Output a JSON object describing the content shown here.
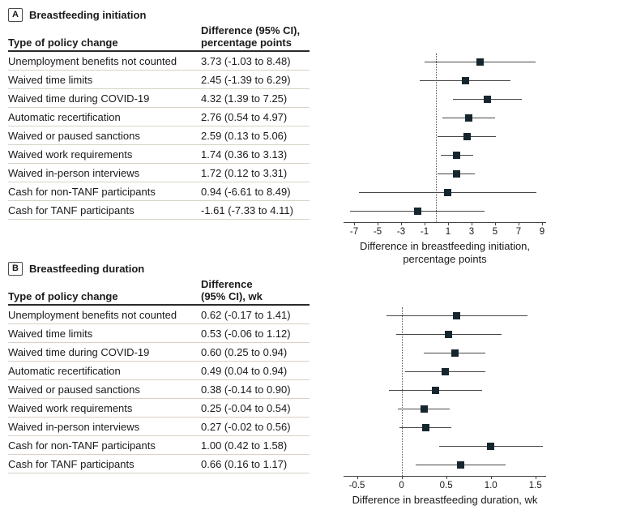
{
  "colors": {
    "marker": "#16262e",
    "ci_line": "#474747",
    "axis": "#444444",
    "refline": "#555555",
    "rule_light": "#d8d2c6",
    "rule_dark": "#2a2a2a",
    "text": "#1a1a1a"
  },
  "chart_data": [
    {
      "type": "forest",
      "panel_label": "A",
      "title": "Breastfeeding initiation",
      "col1_header": "Type of policy change",
      "col2_header_line1": "Difference (95% CI),",
      "col2_header_line2": "percentage points",
      "categories": [
        "Unemployment benefits not counted",
        "Waived time limits",
        "Waived time during COVID-19",
        "Automatic recertification",
        "Waived or paused sanctions",
        "Waived work requirements",
        "Waived in-person interviews",
        "Cash for non-TANF participants",
        "Cash for TANF participants"
      ],
      "ci_text": [
        "3.73 (-1.03 to 8.48)",
        "2.45 (-1.39 to 6.29)",
        "4.32 (1.39 to 7.25)",
        "2.76 (0.54 to 4.97)",
        "2.59 (0.13 to 5.06)",
        "1.74 (0.36 to 3.13)",
        "1.72 (0.12 to 3.31)",
        "0.94 (-6.61 to 8.49)",
        "-1.61 (-7.33 to 4.11)"
      ],
      "estimates": [
        3.73,
        2.45,
        4.32,
        2.76,
        2.59,
        1.74,
        1.72,
        0.94,
        -1.61
      ],
      "ci_low": [
        -1.03,
        -1.39,
        1.39,
        0.54,
        0.13,
        0.36,
        0.12,
        -6.61,
        -7.33
      ],
      "ci_high": [
        8.48,
        6.29,
        7.25,
        4.97,
        5.06,
        3.13,
        3.31,
        8.49,
        4.11
      ],
      "refline": 0,
      "xlim": [
        -7.9,
        9.35
      ],
      "xticks": [
        -7,
        -5,
        -3,
        -1,
        1,
        3,
        5,
        7,
        9
      ],
      "xtick_labels": [
        "-7",
        "-5",
        "-3",
        "-1",
        "1",
        "3",
        "5",
        "7",
        "9"
      ],
      "xlabel_line1": "Difference in breastfeeding initiation,",
      "xlabel_line2": "percentage points"
    },
    {
      "type": "forest",
      "panel_label": "B",
      "title": "Breastfeeding duration",
      "col1_header": "Type of policy change",
      "col2_header_line1": "Difference",
      "col2_header_line2": "(95% CI), wk",
      "categories": [
        "Unemployment benefits not counted",
        "Waived time limits",
        "Waived time during COVID-19",
        "Automatic recertification",
        "Waived or paused sanctions",
        "Waived work requirements",
        "Waived in-person interviews",
        "Cash for non-TANF participants",
        "Cash for TANF participants"
      ],
      "ci_text": [
        "0.62 (-0.17 to 1.41)",
        "0.53 (-0.06 to 1.12)",
        "0.60 (0.25 to 0.94)",
        "0.49 (0.04 to 0.94)",
        "0.38 (-0.14 to 0.90)",
        "0.25 (-0.04 to 0.54)",
        "0.27 (-0.02 to 0.56)",
        "1.00 (0.42 to 1.58)",
        "0.66 (0.16 to 1.17)"
      ],
      "estimates": [
        0.62,
        0.53,
        0.6,
        0.49,
        0.38,
        0.25,
        0.27,
        1.0,
        0.66
      ],
      "ci_low": [
        -0.17,
        -0.06,
        0.25,
        0.04,
        -0.14,
        -0.04,
        -0.02,
        0.42,
        0.16
      ],
      "ci_high": [
        1.41,
        1.12,
        0.94,
        0.94,
        0.9,
        0.54,
        0.56,
        1.58,
        1.17
      ],
      "refline": 0,
      "xlim": [
        -0.65,
        1.62
      ],
      "xticks": [
        -0.5,
        0,
        0.5,
        1.0,
        1.5
      ],
      "xtick_labels": [
        "-0.5",
        "0",
        "0.5",
        "1.0",
        "1.5"
      ],
      "xlabel_line1": "Difference in breastfeeding duration, wk",
      "xlabel_line2": ""
    }
  ]
}
